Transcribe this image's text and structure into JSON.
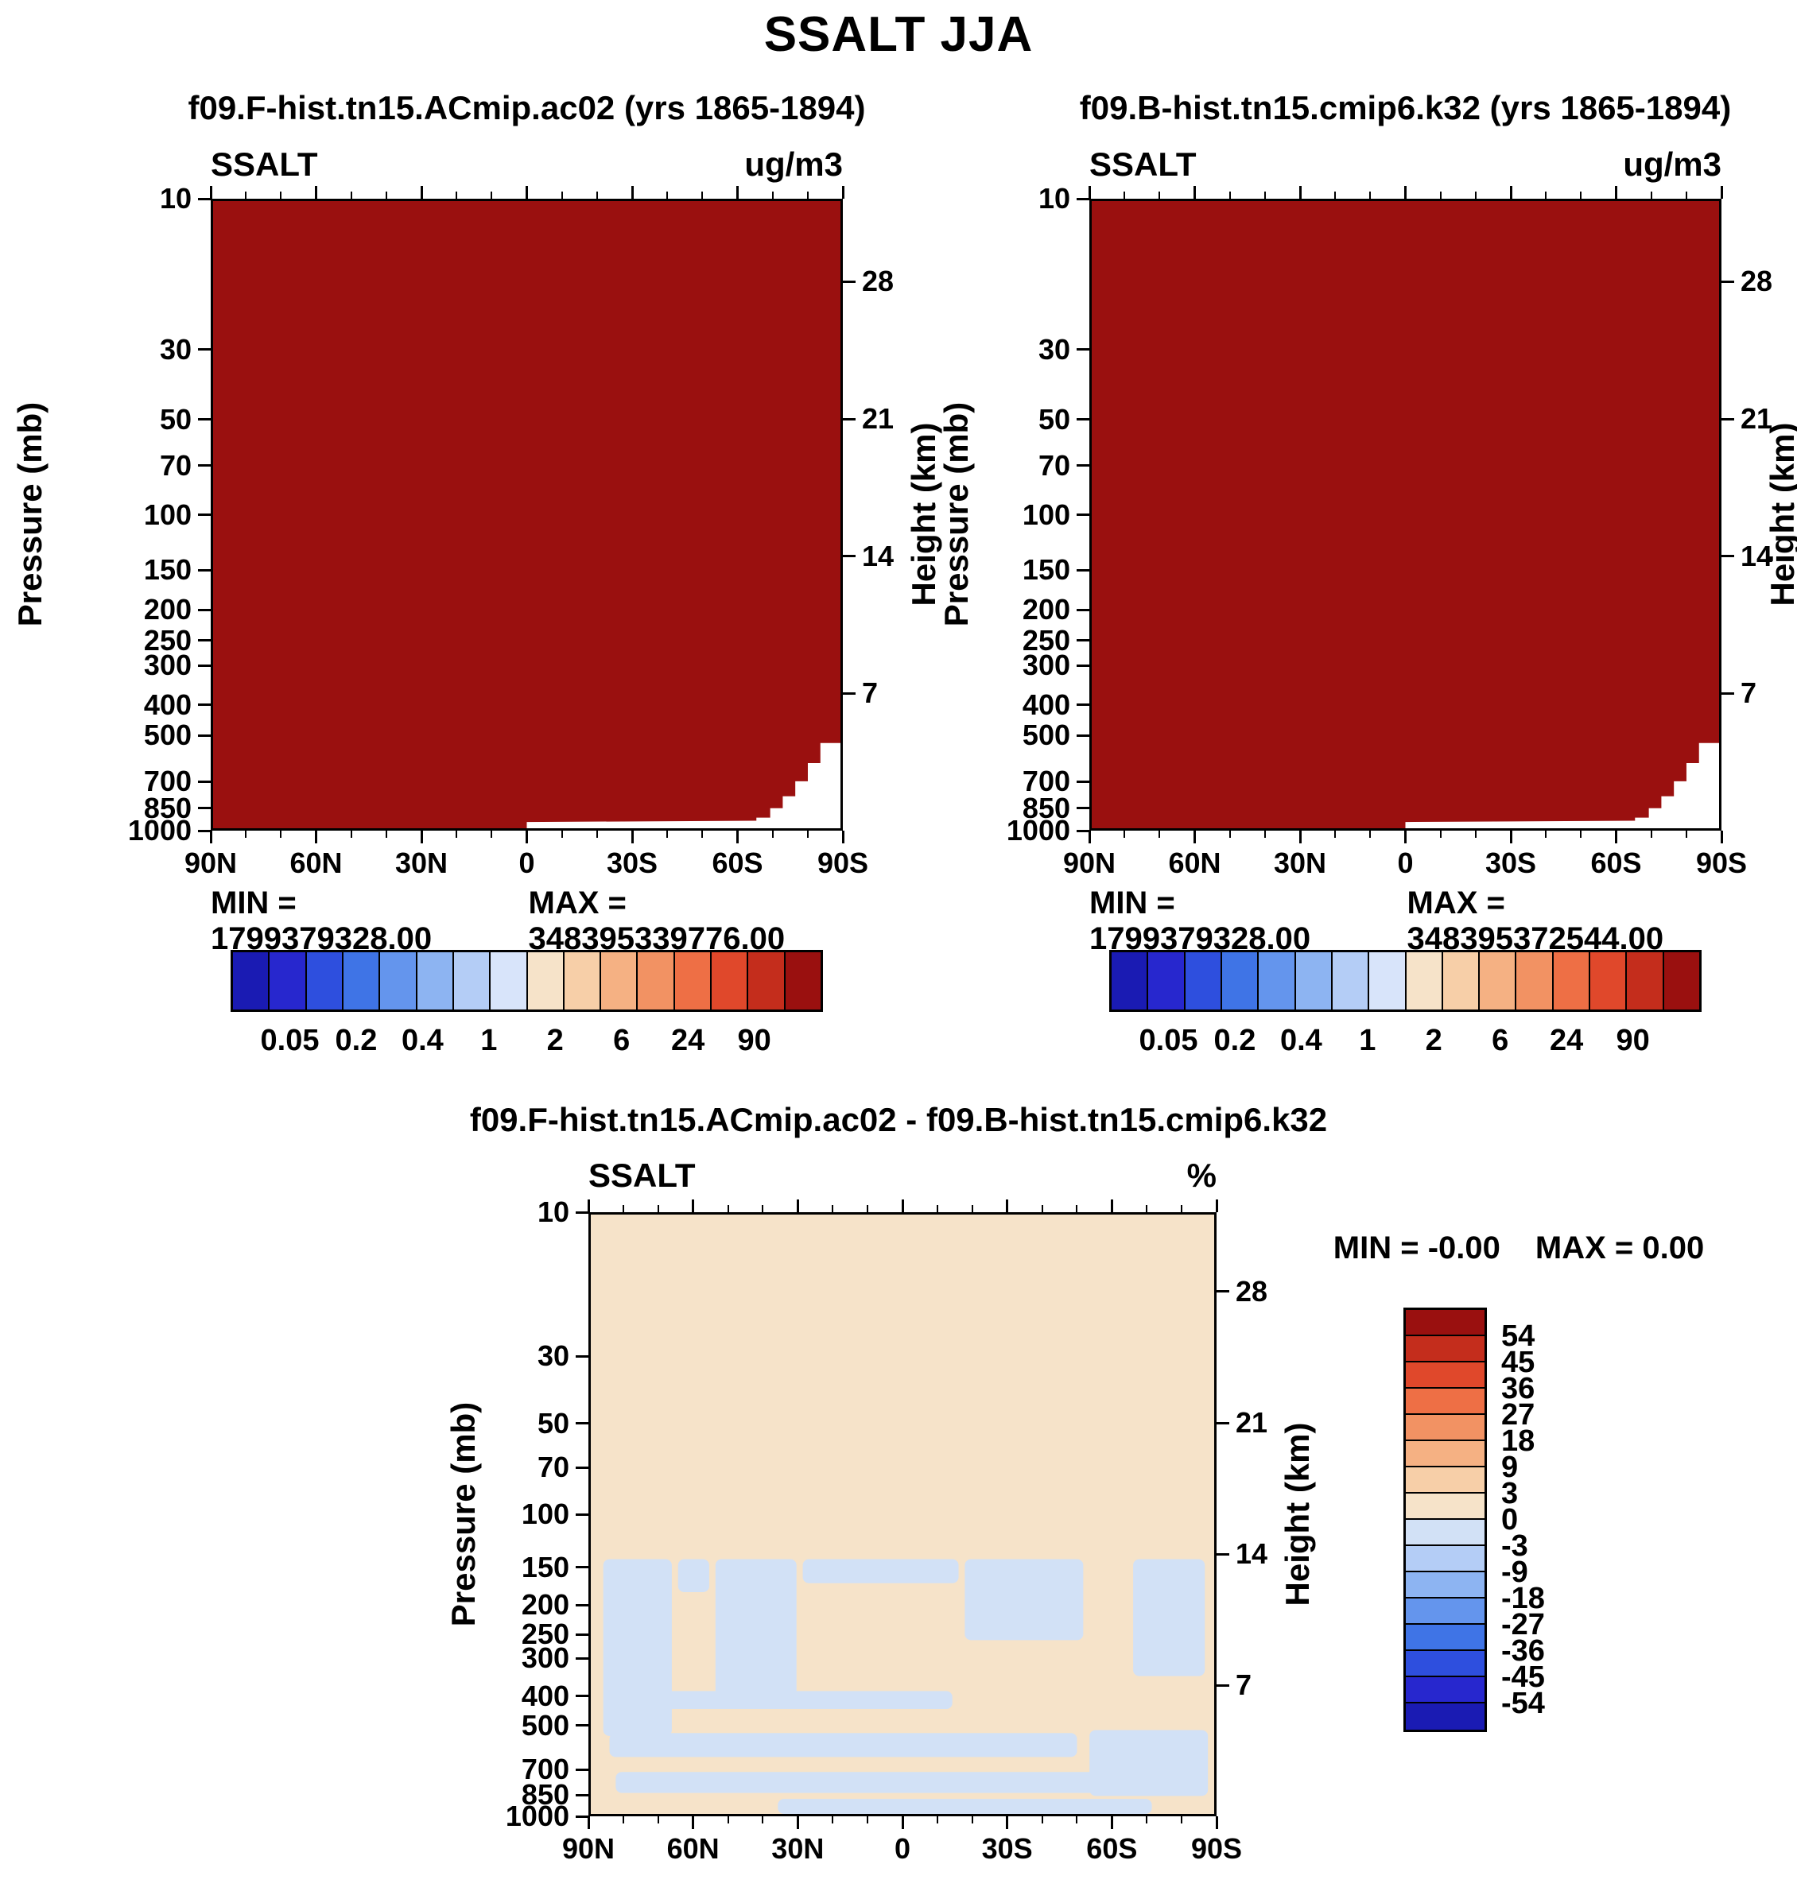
{
  "figure_title": "SSALT JJA",
  "chart_data": [
    {
      "type": "heatmap",
      "title": "f09.F-hist.tn15.ACmip.ac02 (yrs 1865-1894)",
      "field_label": "SSALT",
      "units": "ug/m3",
      "min": "MIN = 1799379328.00",
      "max": "MAX = 348395339776.00",
      "x_ticks": [
        "90N",
        "60N",
        "30N",
        "0",
        "30S",
        "60S",
        "90S"
      ],
      "y_left_label": "Pressure (mb)",
      "y_left_ticks": [
        10,
        30,
        50,
        70,
        100,
        150,
        200,
        250,
        300,
        400,
        500,
        700,
        850,
        1000
      ],
      "y_left_scale": "log",
      "y_right_label": "Height (km)",
      "y_right_ticks": [
        28,
        21,
        14,
        7
      ],
      "field": {
        "description": "entire latitude-pressure cross-section saturated in the top color bin (> 90 ug/m3)",
        "fill_color": "#9A100F",
        "surface_gap_color": "#FFFFFF",
        "surface_gap_poly": "500,1000 500,990 866,988 866,983 888,983 888,968 908,968 908,949 928,949 928,925 948,925 948,896 968,896 968,864 1000,864 1000,1000"
      },
      "colorbar": {
        "orientation": "horizontal",
        "labels": [
          "0.05",
          "0.2",
          "0.4",
          "1",
          "2",
          "6",
          "24",
          "90"
        ],
        "colors": [
          "#1A1BB3",
          "#2727CE",
          "#2E4FDE",
          "#3F74E6",
          "#6495ED",
          "#8DB4F2",
          "#B4CDF6",
          "#D8E4FA",
          "#F6E3C9",
          "#F7CFA8",
          "#F5B183",
          "#F29263",
          "#EE6F45",
          "#E0482B",
          "#C42D1C",
          "#9A100F"
        ]
      }
    },
    {
      "type": "heatmap",
      "title": "f09.B-hist.tn15.cmip6.k32 (yrs 1865-1894)",
      "field_label": "SSALT",
      "units": "ug/m3",
      "min": "MIN = 1799379328.00",
      "max": "MAX = 348395372544.00",
      "x_ticks": [
        "90N",
        "60N",
        "30N",
        "0",
        "30S",
        "60S",
        "90S"
      ],
      "y_left_label": "Pressure (mb)",
      "y_left_ticks": [
        10,
        30,
        50,
        70,
        100,
        150,
        200,
        250,
        300,
        400,
        500,
        700,
        850,
        1000
      ],
      "y_left_scale": "log",
      "y_right_label": "Height (km)",
      "y_right_ticks": [
        28,
        21,
        14,
        7
      ],
      "field": {
        "description": "entire latitude-pressure cross-section saturated in the top color bin (> 90 ug/m3)",
        "fill_color": "#9A100F",
        "surface_gap_color": "#FFFFFF",
        "surface_gap_poly": "500,1000 500,990 866,988 866,983 888,983 888,968 908,968 908,949 928,949 928,925 948,925 948,896 968,896 968,864 1000,864 1000,1000"
      },
      "colorbar": {
        "orientation": "horizontal",
        "labels": [
          "0.05",
          "0.2",
          "0.4",
          "1",
          "2",
          "6",
          "24",
          "90"
        ],
        "colors": [
          "#1A1BB3",
          "#2727CE",
          "#2E4FDE",
          "#3F74E6",
          "#6495ED",
          "#8DB4F2",
          "#B4CDF6",
          "#D8E4FA",
          "#F6E3C9",
          "#F7CFA8",
          "#F5B183",
          "#F29263",
          "#EE6F45",
          "#E0482B",
          "#C42D1C",
          "#9A100F"
        ]
      }
    },
    {
      "type": "heatmap",
      "title": "f09.F-hist.tn15.ACmip.ac02 - f09.B-hist.tn15.cmip6.k32",
      "field_label": "SSALT",
      "units": "%",
      "min": "MIN =  -0.00",
      "max": "MAX =   0.00",
      "x_ticks": [
        "90N",
        "60N",
        "30N",
        "0",
        "30S",
        "60S",
        "90S"
      ],
      "y_left_label": "Pressure (mb)",
      "y_left_ticks": [
        10,
        30,
        50,
        70,
        100,
        150,
        200,
        250,
        300,
        400,
        500,
        700,
        850,
        1000
      ],
      "y_left_scale": "log",
      "y_right_label": "Height (km)",
      "y_right_ticks": [
        28,
        21,
        14,
        7
      ],
      "field": {
        "description": "percent difference is ~0 everywhere; cream = 0 to 3 bin, pale blue patches = -3 to 0 bin below ~150 mb",
        "fill_color": "#F6E3C9",
        "negative_color": "#D2E1F6",
        "negative_regions": [
          [
            20,
            575,
            110,
            295
          ],
          [
            200,
            575,
            130,
            235
          ],
          [
            140,
            575,
            50,
            55
          ],
          [
            340,
            575,
            250,
            40
          ],
          [
            600,
            575,
            190,
            135
          ],
          [
            870,
            575,
            115,
            195
          ],
          [
            50,
            795,
            530,
            30
          ],
          [
            30,
            865,
            750,
            40
          ],
          [
            40,
            930,
            910,
            35
          ],
          [
            300,
            975,
            600,
            25
          ],
          [
            800,
            860,
            190,
            110
          ]
        ]
      },
      "colorbar": {
        "orientation": "vertical",
        "labels": [
          "54",
          "45",
          "36",
          "27",
          "18",
          "9",
          "3",
          "0",
          "-3",
          "-9",
          "-18",
          "-27",
          "-36",
          "-45",
          "-54"
        ],
        "colors": [
          "#9A100F",
          "#C42D1C",
          "#E0482B",
          "#EE6F45",
          "#F29263",
          "#F5B183",
          "#F7CFA8",
          "#F6E3C9",
          "#D2E1F6",
          "#B4CDF6",
          "#8DB4F2",
          "#6495ED",
          "#3F74E6",
          "#2E4FDE",
          "#2727CE",
          "#1A1BB3"
        ]
      }
    }
  ]
}
